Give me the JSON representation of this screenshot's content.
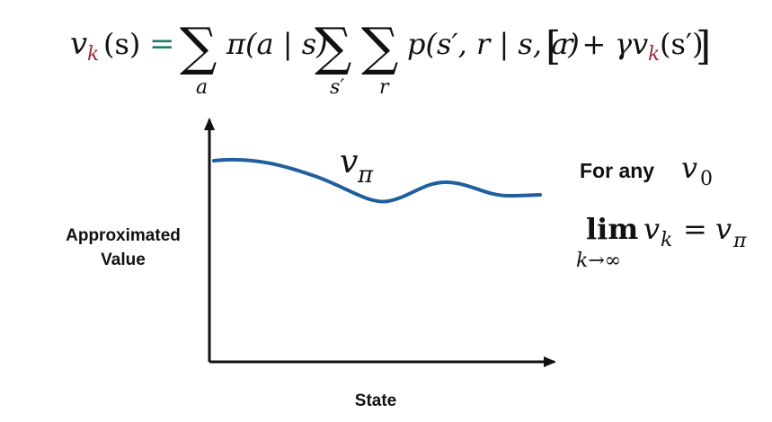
{
  "equation": {
    "lhs_v": "v",
    "lhs_sub": "k",
    "lhs_arg": "(s)",
    "equals": "=",
    "sum1_sub": "a",
    "policy": "π(a | s)",
    "sum2_sub": "s′",
    "sum3_sub": "r",
    "transition": "p(s′, r | s, a)",
    "bracket_content_r": "r +",
    "bracket_gamma_v": "γv",
    "bracket_sub": "k",
    "bracket_arg": "(s′)",
    "sum_symbol": "∑",
    "open_bracket": "[",
    "close_bracket": "]"
  },
  "diagram": {
    "curve_label_v": "v",
    "curve_label_sub": "π",
    "y_axis_label_line1": "Approximated",
    "y_axis_label_line2": "Value",
    "x_axis_label": "State"
  },
  "side_note": {
    "for_any": "For any",
    "v0_v": "v",
    "v0_sub": "0",
    "lim": "lim",
    "lim_sub": "k→∞",
    "lim_v": "v",
    "lim_v_sub": "k",
    "lim_equals": "=",
    "lim_rhs_v": "v",
    "lim_rhs_sub": "π"
  },
  "colors": {
    "accent_sub": "#9b2a3a",
    "curve": "#1f5f9e",
    "text": "#111111",
    "axis": "#111111"
  }
}
